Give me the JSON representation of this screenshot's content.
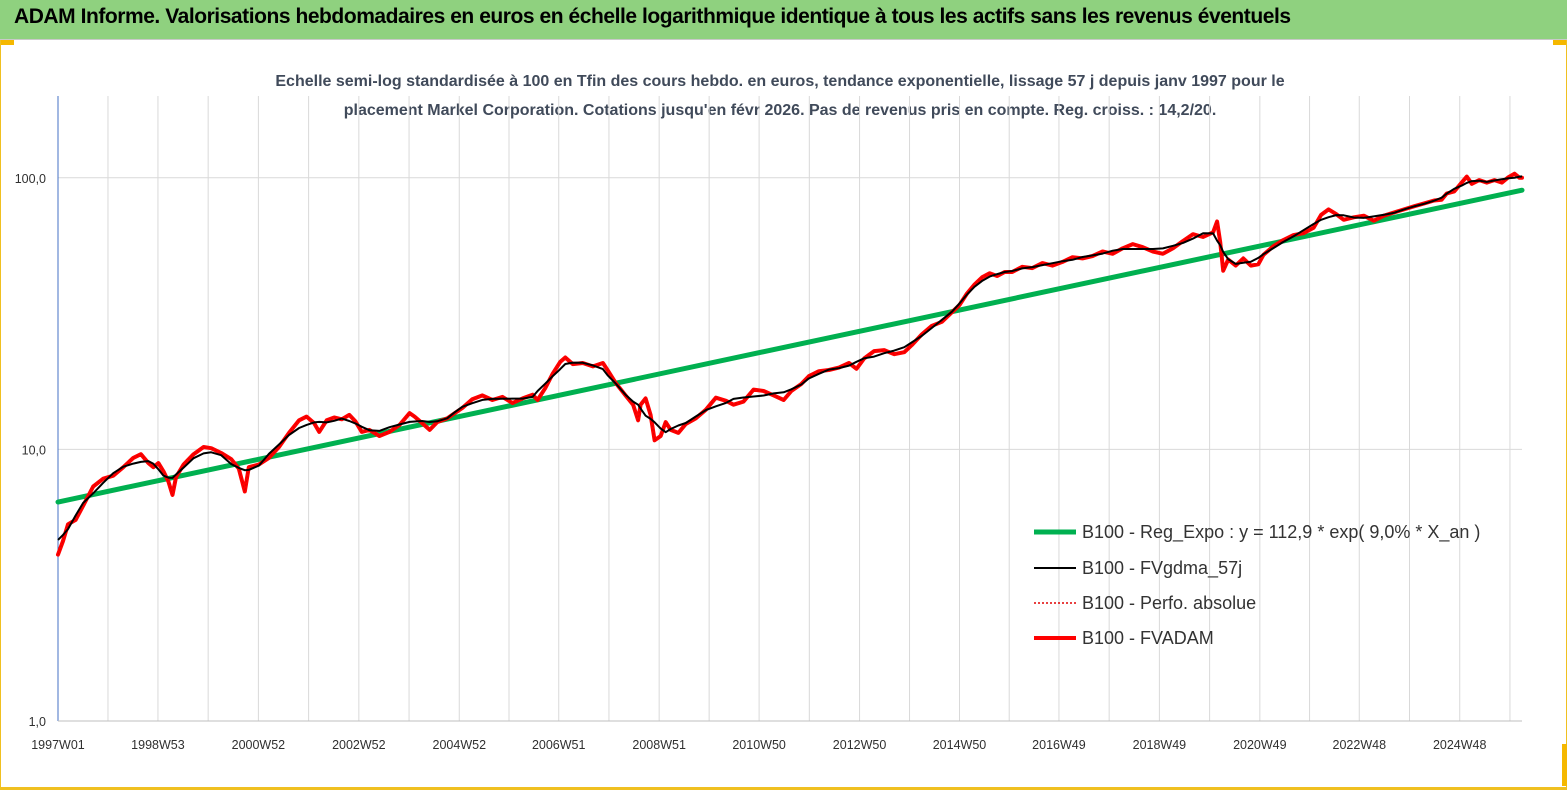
{
  "header": {
    "title": "ADAM Informe. Valorisations hebdomadaires en euros en échelle logarithmique identique à tous les actifs sans les revenus éventuels"
  },
  "chart_data": {
    "type": "line",
    "title": "",
    "subtitle_lines": [
      "Echelle semi-log standardisée à 100 en Tfin des cours hebdo. en euros, tendance exponentielle, lissage 57 j depuis janv 1997 pour le",
      "placement Markel Corporation. Cotations jusqu'en févr 2026. Pas de revenus pris en compte. Reg. croiss. : 14,2/20."
    ],
    "xlabel": "",
    "ylabel": "",
    "y_scale": "log",
    "ylim": [
      1,
      200
    ],
    "y_ticks": [
      1,
      10,
      100
    ],
    "y_tick_labels": [
      "1,0",
      "10,0",
      "100,0"
    ],
    "x_range": [
      1997.0,
      2026.15
    ],
    "x_ticks": [
      {
        "x": 1997.0,
        "label": "1997W01"
      },
      {
        "x": 1998.99,
        "label": "1998W53"
      },
      {
        "x": 2000.99,
        "label": "2000W52"
      },
      {
        "x": 2002.99,
        "label": "2002W52"
      },
      {
        "x": 2004.99,
        "label": "2004W52"
      },
      {
        "x": 2006.97,
        "label": "2006W51"
      },
      {
        "x": 2008.97,
        "label": "2008W51"
      },
      {
        "x": 2010.96,
        "label": "2010W50"
      },
      {
        "x": 2012.96,
        "label": "2012W50"
      },
      {
        "x": 2014.95,
        "label": "2014W50"
      },
      {
        "x": 2016.93,
        "label": "2016W49"
      },
      {
        "x": 2018.93,
        "label": "2018W49"
      },
      {
        "x": 2020.93,
        "label": "2020W49"
      },
      {
        "x": 2022.91,
        "label": "2022W48"
      },
      {
        "x": 2024.91,
        "label": "2024W48"
      }
    ],
    "grid": true,
    "legend_position": "bottom-right",
    "series": [
      {
        "name": "B100 - Reg_Expo : y = 112,9 * exp( 9,0% *  X_an )",
        "key": "reg",
        "color": "#00b050",
        "width": 5
      },
      {
        "name": "B100 - FVgdma_57j",
        "key": "fvgdma",
        "color": "#000000",
        "width": 2
      },
      {
        "name": "B100 - Perfo. absolue",
        "key": "perfo",
        "color": "#e00000",
        "width": 1.5,
        "dash": true
      },
      {
        "name": "B100 - FVADAM",
        "key": "fvadam",
        "color": "#ff0000",
        "width": 4
      }
    ],
    "regression": {
      "start": [
        1997.0,
        6.4
      ],
      "end": [
        2026.15,
        90
      ]
    },
    "fvadam_points": [
      [
        1997.0,
        4.1
      ],
      [
        1997.1,
        4.6
      ],
      [
        1997.2,
        5.3
      ],
      [
        1997.35,
        5.5
      ],
      [
        1997.5,
        6.2
      ],
      [
        1997.7,
        7.3
      ],
      [
        1997.9,
        7.8
      ],
      [
        1998.1,
        8.0
      ],
      [
        1998.3,
        8.6
      ],
      [
        1998.5,
        9.3
      ],
      [
        1998.65,
        9.6
      ],
      [
        1998.8,
        8.9
      ],
      [
        1998.9,
        8.6
      ],
      [
        1999.0,
        8.9
      ],
      [
        1999.1,
        8.3
      ],
      [
        1999.2,
        7.6
      ],
      [
        1999.28,
        6.8
      ],
      [
        1999.35,
        7.9
      ],
      [
        1999.5,
        8.8
      ],
      [
        1999.7,
        9.6
      ],
      [
        1999.9,
        10.2
      ],
      [
        2000.05,
        10.1
      ],
      [
        2000.25,
        9.7
      ],
      [
        2000.45,
        9.2
      ],
      [
        2000.6,
        8.5
      ],
      [
        2000.72,
        7.0
      ],
      [
        2000.8,
        8.6
      ],
      [
        2001.0,
        8.8
      ],
      [
        2001.2,
        9.3
      ],
      [
        2001.4,
        10.2
      ],
      [
        2001.6,
        11.5
      ],
      [
        2001.8,
        12.8
      ],
      [
        2001.95,
        13.2
      ],
      [
        2002.1,
        12.5
      ],
      [
        2002.2,
        11.6
      ],
      [
        2002.35,
        12.8
      ],
      [
        2002.5,
        13.1
      ],
      [
        2002.65,
        12.9
      ],
      [
        2002.8,
        13.4
      ],
      [
        2002.92,
        12.7
      ],
      [
        2003.05,
        11.6
      ],
      [
        2003.2,
        11.8
      ],
      [
        2003.4,
        11.2
      ],
      [
        2003.6,
        11.6
      ],
      [
        2003.8,
        12.3
      ],
      [
        2004.0,
        13.6
      ],
      [
        2004.1,
        13.2
      ],
      [
        2004.25,
        12.5
      ],
      [
        2004.4,
        11.8
      ],
      [
        2004.55,
        12.6
      ],
      [
        2004.75,
        13.0
      ],
      [
        2004.9,
        13.6
      ],
      [
        2005.05,
        14.2
      ],
      [
        2005.25,
        15.3
      ],
      [
        2005.45,
        15.8
      ],
      [
        2005.65,
        15.2
      ],
      [
        2005.85,
        15.6
      ],
      [
        2006.05,
        14.8
      ],
      [
        2006.25,
        15.4
      ],
      [
        2006.45,
        15.9
      ],
      [
        2006.55,
        15.2
      ],
      [
        2006.7,
        16.8
      ],
      [
        2006.85,
        19.0
      ],
      [
        2007.0,
        21.0
      ],
      [
        2007.1,
        21.8
      ],
      [
        2007.25,
        20.6
      ],
      [
        2007.45,
        20.8
      ],
      [
        2007.65,
        20.2
      ],
      [
        2007.85,
        20.8
      ],
      [
        2007.95,
        19.5
      ],
      [
        2008.1,
        17.6
      ],
      [
        2008.3,
        15.8
      ],
      [
        2008.45,
        14.6
      ],
      [
        2008.55,
        12.8
      ],
      [
        2008.6,
        14.6
      ],
      [
        2008.7,
        15.4
      ],
      [
        2008.8,
        13.4
      ],
      [
        2008.88,
        10.8
      ],
      [
        2009.0,
        11.2
      ],
      [
        2009.1,
        12.6
      ],
      [
        2009.2,
        11.8
      ],
      [
        2009.35,
        11.5
      ],
      [
        2009.5,
        12.4
      ],
      [
        2009.7,
        13.0
      ],
      [
        2009.9,
        14.0
      ],
      [
        2010.1,
        15.5
      ],
      [
        2010.3,
        15.1
      ],
      [
        2010.45,
        14.6
      ],
      [
        2010.65,
        15.0
      ],
      [
        2010.85,
        16.6
      ],
      [
        2011.05,
        16.4
      ],
      [
        2011.25,
        15.8
      ],
      [
        2011.45,
        15.2
      ],
      [
        2011.6,
        16.4
      ],
      [
        2011.8,
        17.4
      ],
      [
        2011.95,
        18.6
      ],
      [
        2012.15,
        19.4
      ],
      [
        2012.35,
        19.6
      ],
      [
        2012.55,
        20.0
      ],
      [
        2012.75,
        20.8
      ],
      [
        2012.9,
        19.8
      ],
      [
        2013.05,
        21.6
      ],
      [
        2013.25,
        23.0
      ],
      [
        2013.45,
        23.2
      ],
      [
        2013.65,
        22.4
      ],
      [
        2013.85,
        22.8
      ],
      [
        2014.0,
        24.2
      ],
      [
        2014.2,
        26.5
      ],
      [
        2014.4,
        28.5
      ],
      [
        2014.6,
        29.5
      ],
      [
        2014.8,
        32.0
      ],
      [
        2014.95,
        34.0
      ],
      [
        2015.1,
        37.5
      ],
      [
        2015.25,
        40.5
      ],
      [
        2015.4,
        43.0
      ],
      [
        2015.55,
        44.5
      ],
      [
        2015.7,
        43.5
      ],
      [
        2015.85,
        45.0
      ],
      [
        2016.0,
        45.0
      ],
      [
        2016.2,
        47.0
      ],
      [
        2016.4,
        46.5
      ],
      [
        2016.6,
        48.5
      ],
      [
        2016.8,
        47.5
      ],
      [
        2017.0,
        49.0
      ],
      [
        2017.2,
        51.0
      ],
      [
        2017.4,
        50.5
      ],
      [
        2017.6,
        51.5
      ],
      [
        2017.8,
        53.5
      ],
      [
        2018.0,
        52.5
      ],
      [
        2018.2,
        55.0
      ],
      [
        2018.4,
        57.0
      ],
      [
        2018.6,
        55.5
      ],
      [
        2018.8,
        53.5
      ],
      [
        2019.0,
        52.5
      ],
      [
        2019.2,
        55.0
      ],
      [
        2019.4,
        58.5
      ],
      [
        2019.6,
        62.0
      ],
      [
        2019.8,
        60.5
      ],
      [
        2020.0,
        63.0
      ],
      [
        2020.08,
        69.0
      ],
      [
        2020.14,
        58.0
      ],
      [
        2020.2,
        45.5
      ],
      [
        2020.3,
        50.0
      ],
      [
        2020.45,
        47.5
      ],
      [
        2020.6,
        50.5
      ],
      [
        2020.75,
        47.5
      ],
      [
        2020.9,
        48.0
      ],
      [
        2021.0,
        52.0
      ],
      [
        2021.2,
        56.0
      ],
      [
        2021.4,
        59.0
      ],
      [
        2021.6,
        61.5
      ],
      [
        2021.8,
        62.5
      ],
      [
        2022.0,
        65.5
      ],
      [
        2022.15,
        73.0
      ],
      [
        2022.3,
        76.5
      ],
      [
        2022.45,
        73.5
      ],
      [
        2022.6,
        70.0
      ],
      [
        2022.8,
        71.5
      ],
      [
        2023.0,
        72.5
      ],
      [
        2023.2,
        69.5
      ],
      [
        2023.4,
        72.5
      ],
      [
        2023.6,
        74.5
      ],
      [
        2023.8,
        76.5
      ],
      [
        2024.0,
        78.5
      ],
      [
        2024.2,
        80.5
      ],
      [
        2024.4,
        82.5
      ],
      [
        2024.55,
        83.0
      ],
      [
        2024.65,
        87.5
      ],
      [
        2024.8,
        89.0
      ],
      [
        2024.95,
        96.0
      ],
      [
        2025.05,
        101.0
      ],
      [
        2025.15,
        95.0
      ],
      [
        2025.3,
        98.0
      ],
      [
        2025.45,
        96.0
      ],
      [
        2025.6,
        98.0
      ],
      [
        2025.75,
        96.0
      ],
      [
        2025.88,
        100.5
      ],
      [
        2026.0,
        103.5
      ],
      [
        2026.1,
        100.0
      ],
      [
        2026.15,
        100.0
      ]
    ]
  }
}
